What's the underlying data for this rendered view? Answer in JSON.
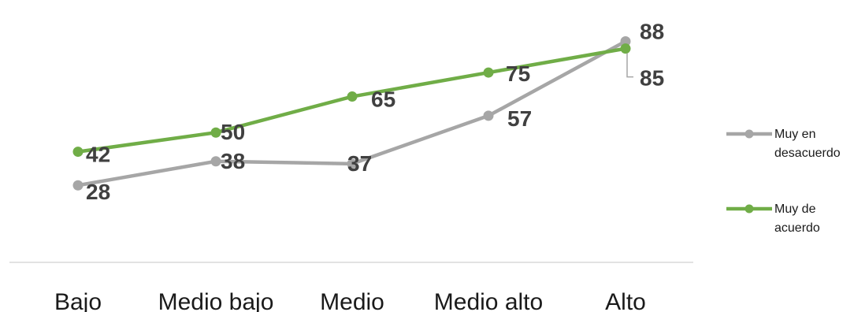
{
  "chart_data": {
    "type": "line",
    "categories": [
      "Bajo",
      "Medio bajo",
      "Medio",
      "Medio alto",
      "Alto"
    ],
    "series": [
      {
        "name": "Muy en desacuerdo",
        "legend_lines": [
          "Muy en",
          "desacuerdo"
        ],
        "values": [
          28,
          38,
          37,
          57,
          88
        ],
        "color": "#a6a6a6"
      },
      {
        "name": "Muy de acuerdo",
        "legend_lines": [
          "Muy de",
          "acuerdo"
        ],
        "values": [
          42,
          50,
          65,
          75,
          85
        ],
        "color": "#70ad47"
      }
    ],
    "title": "",
    "xlabel": "",
    "ylabel": "",
    "ylim": [
      0,
      100
    ],
    "grid": false,
    "legend": "right"
  }
}
